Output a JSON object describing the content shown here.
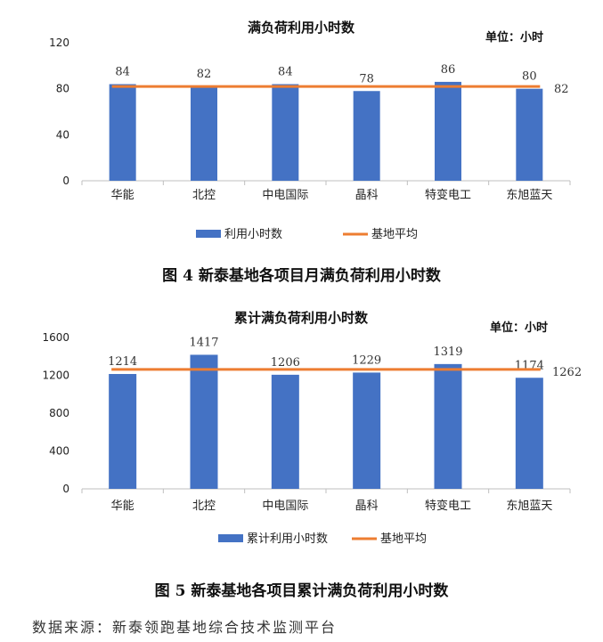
{
  "charts": [
    {
      "chart_data": {
        "type": "bar",
        "title": "满负荷利用小时数",
        "unit": "单位：小时",
        "categories": [
          "华能",
          "北控",
          "中电国际",
          "晶科",
          "特变电工",
          "东旭蓝天"
        ],
        "series": [
          {
            "name": "利用小时数",
            "type": "bar",
            "values": [
              84,
              82,
              84,
              78,
              86,
              80
            ]
          },
          {
            "name": "基地平均",
            "type": "line",
            "value": 82
          }
        ],
        "yticks": [
          0,
          40,
          80,
          120
        ],
        "ylim": [
          0,
          120
        ],
        "bar_color": "#4472C4",
        "line_color": "#ED7D31",
        "legend_position": "bottom"
      },
      "caption": "图 4   新泰基地各项目月满负荷利用小时数"
    },
    {
      "chart_data": {
        "type": "bar",
        "title": "累计满负荷利用小时数",
        "unit": "单位：小时",
        "categories": [
          "华能",
          "北控",
          "中电国际",
          "晶科",
          "特变电工",
          "东旭蓝天"
        ],
        "series": [
          {
            "name": "累计利用小时数",
            "type": "bar",
            "values": [
              1214,
              1417,
              1206,
              1229,
              1319,
              1174
            ]
          },
          {
            "name": "基地平均",
            "type": "line",
            "value": 1262
          }
        ],
        "yticks": [
          0,
          400,
          800,
          1200,
          1600
        ],
        "ylim": [
          0,
          1600
        ],
        "bar_color": "#4472C4",
        "line_color": "#ED7D31",
        "legend_position": "bottom"
      },
      "caption": "图 5   新泰基地各项目累计满负荷利用小时数"
    }
  ],
  "source": "数据来源：新泰领跑基地综合技术监测平台"
}
